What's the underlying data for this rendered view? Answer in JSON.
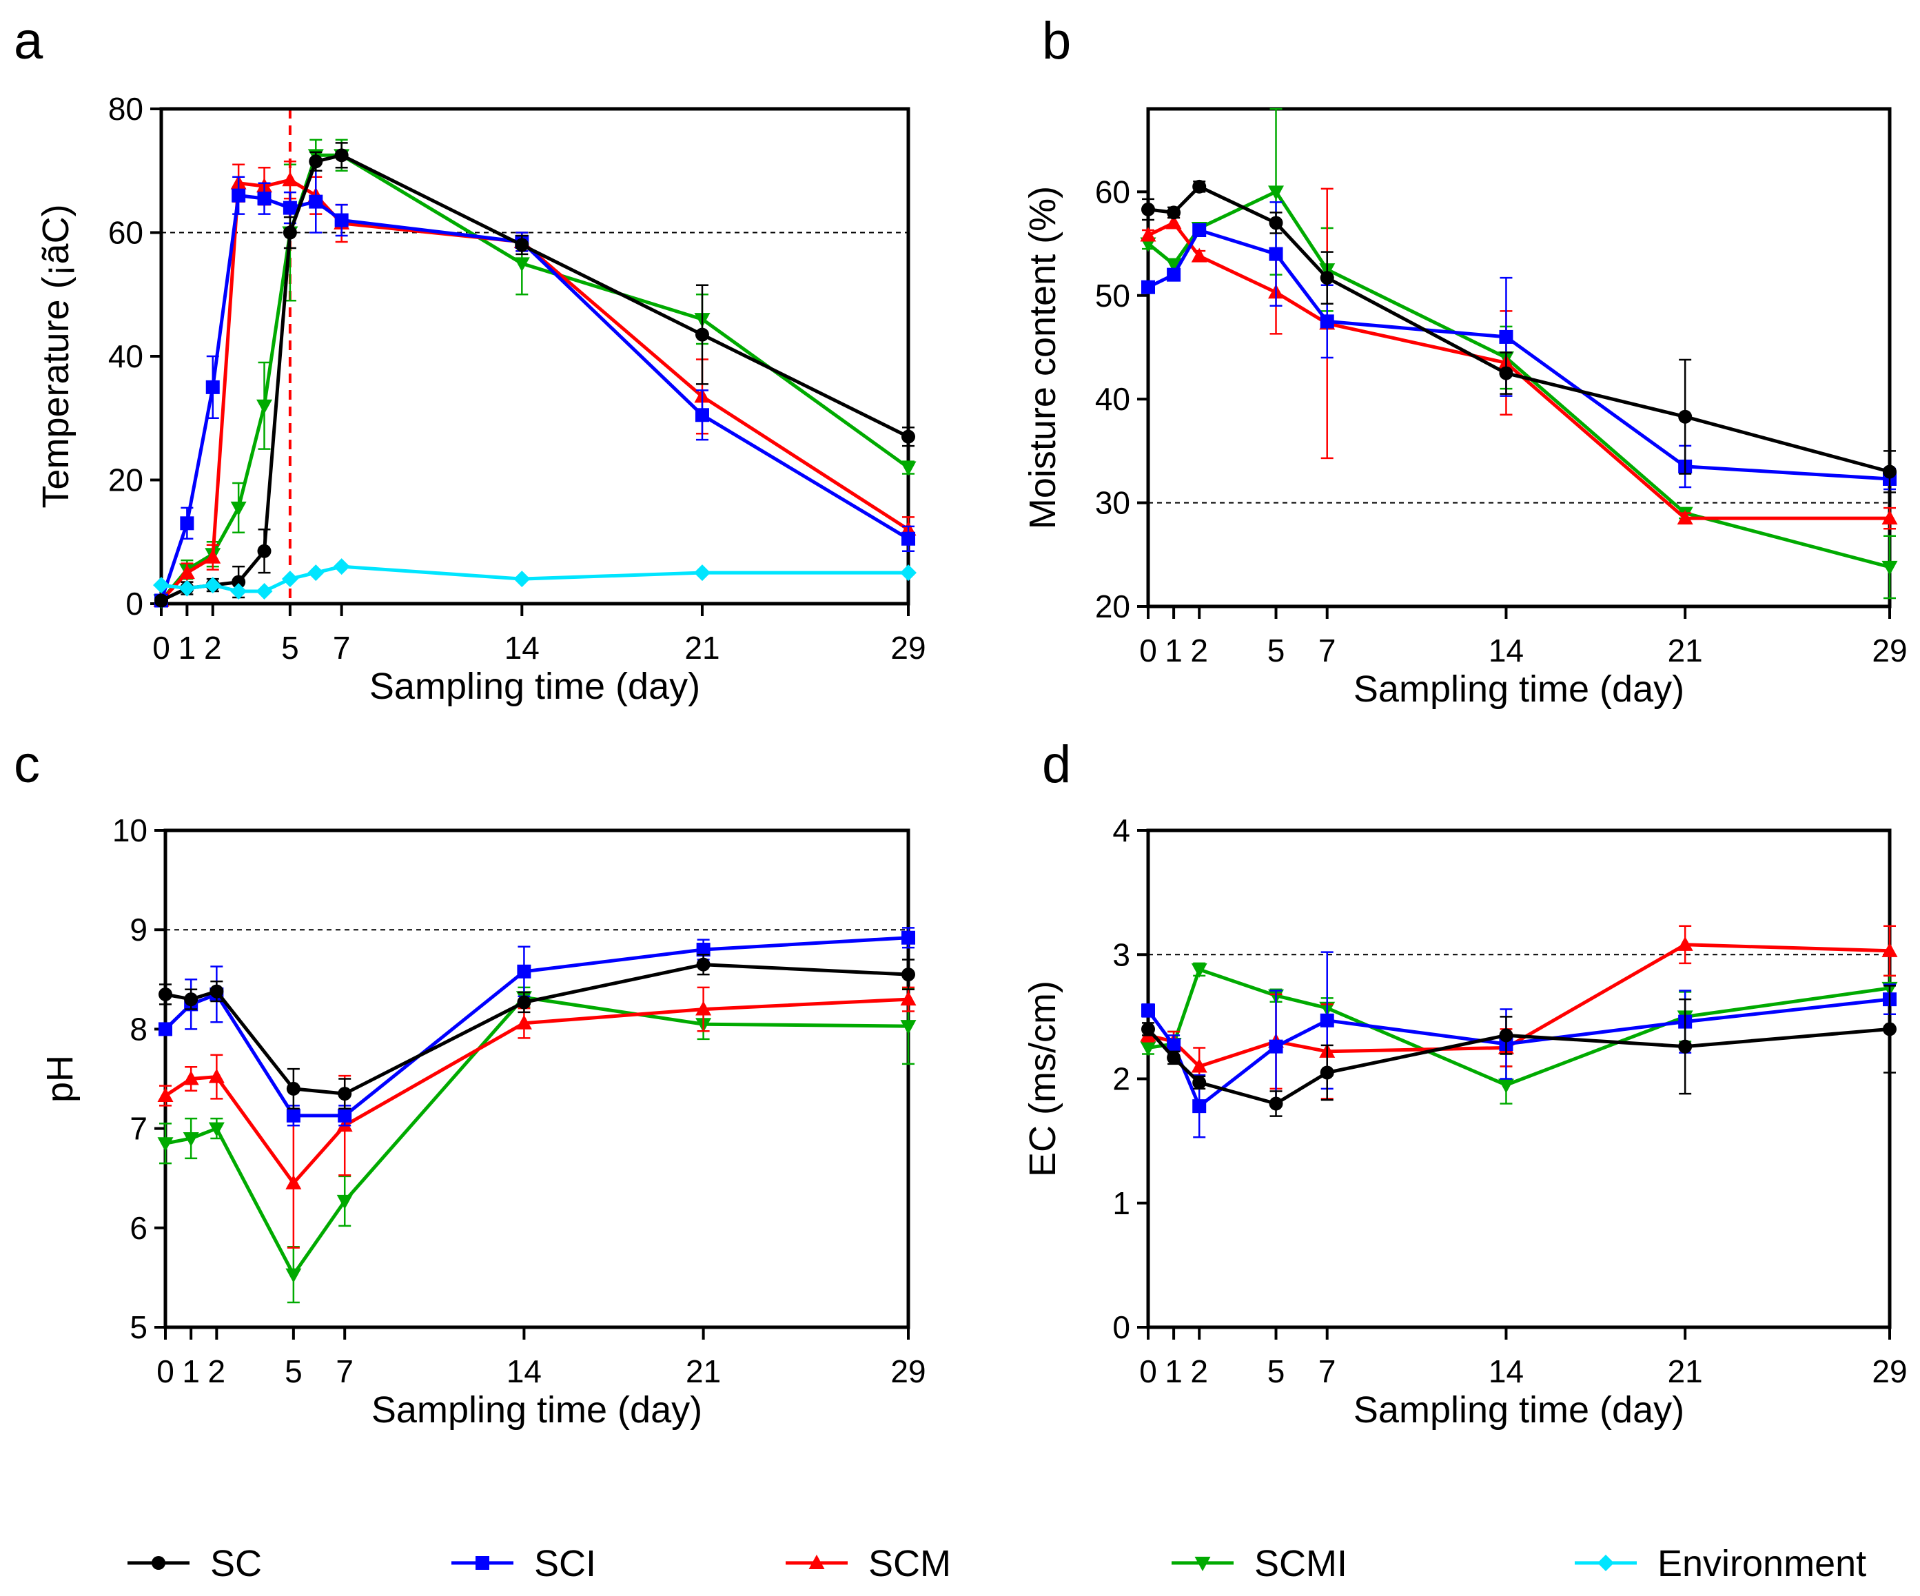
{
  "chart_data": [
    {
      "panel": "a",
      "type": "line",
      "xlabel": "Sampling time (day)",
      "ylabel": "Temperature (¡ãC)",
      "xlim": [
        0,
        29
      ],
      "ylim": [
        0,
        80
      ],
      "xticks": [
        0,
        1,
        2,
        5,
        7,
        14,
        21,
        29
      ],
      "xtick_labels": [
        "0",
        "1",
        "2",
        "5",
        "7",
        "14",
        "21",
        "29"
      ],
      "yticks": [
        0,
        20,
        40,
        60,
        80
      ],
      "reference_hline": 60,
      "reference_vline": 5,
      "series": [
        {
          "name": "SC",
          "x": [
            0,
            1,
            2,
            3,
            4,
            5,
            6,
            7,
            14,
            21,
            29
          ],
          "y": [
            0.5,
            2.5,
            3,
            3.5,
            8.5,
            60,
            71.5,
            72.5,
            58,
            43.5,
            27
          ],
          "err": [
            0.5,
            1,
            1,
            2.5,
            3.5,
            2.5,
            1.5,
            2,
            1.5,
            8,
            1.5
          ]
        },
        {
          "name": "SCI",
          "x": [
            0,
            1,
            2,
            3,
            4,
            5,
            6,
            7,
            14,
            21,
            29
          ],
          "y": [
            0.5,
            13,
            35,
            66,
            65.5,
            64,
            65,
            62,
            58.5,
            30.5,
            10.5
          ],
          "err": [
            0.5,
            2.5,
            5,
            3,
            2.5,
            2.5,
            5,
            2.5,
            1.5,
            4,
            2
          ]
        },
        {
          "name": "SCM",
          "x": [
            0,
            1,
            2,
            3,
            4,
            5,
            6,
            7,
            14,
            21,
            29
          ],
          "y": [
            0.5,
            5,
            7.5,
            68,
            67.5,
            68.5,
            66,
            61.5,
            58.5,
            33.5,
            12
          ],
          "err": [
            0.5,
            1.5,
            2,
            3,
            3,
            3,
            3,
            3,
            1.5,
            6,
            2
          ]
        },
        {
          "name": "SCMI",
          "x": [
            0,
            1,
            2,
            3,
            4,
            5,
            6,
            7,
            14,
            21,
            29
          ],
          "y": [
            0.5,
            5.5,
            8,
            15.5,
            32,
            60,
            72.5,
            72.5,
            55,
            46,
            22
          ],
          "err": [
            0.5,
            1.5,
            2,
            4,
            7,
            11,
            2.5,
            2.5,
            5,
            4,
            1
          ]
        },
        {
          "name": "Environment",
          "x": [
            0,
            1,
            2,
            3,
            4,
            5,
            6,
            7,
            14,
            21,
            29
          ],
          "y": [
            3,
            2.5,
            3,
            2,
            2,
            4,
            5,
            6,
            4,
            5,
            5
          ],
          "err": [
            0,
            0,
            0,
            0,
            0,
            0,
            0,
            0,
            0,
            0,
            0
          ]
        }
      ]
    },
    {
      "panel": "b",
      "type": "line",
      "xlabel": "Sampling time (day)",
      "ylabel": "Moisture content (%)",
      "xlim": [
        0,
        29
      ],
      "ylim": [
        20,
        68
      ],
      "xticks": [
        0,
        1,
        2,
        5,
        7,
        14,
        21,
        29
      ],
      "xtick_labels": [
        "0",
        "1",
        "2",
        "5",
        "7",
        "14",
        "21",
        "29"
      ],
      "yticks": [
        20,
        30,
        40,
        50,
        60
      ],
      "reference_hline": 30,
      "series": [
        {
          "name": "SC",
          "x": [
            0,
            1,
            2,
            5,
            7,
            14,
            21,
            29
          ],
          "y": [
            58.3,
            58,
            60.5,
            57,
            51.7,
            42.5,
            38.3,
            33
          ],
          "err": [
            1,
            0.5,
            0.5,
            1,
            2.5,
            2,
            5.5,
            2
          ]
        },
        {
          "name": "SCI",
          "x": [
            0,
            1,
            2,
            5,
            7,
            14,
            21,
            29
          ],
          "y": [
            50.8,
            52,
            56.3,
            54,
            47.5,
            46,
            33.5,
            32.3
          ],
          "err": [
            0.5,
            0.5,
            0.5,
            5,
            3.5,
            5.7,
            2,
            1
          ]
        },
        {
          "name": "SCM",
          "x": [
            0,
            1,
            2,
            5,
            7,
            14,
            21,
            29
          ],
          "y": [
            55.8,
            57,
            53.8,
            50.3,
            47.3,
            43.5,
            28.5,
            28.5
          ],
          "err": [
            0.5,
            0.5,
            0.5,
            4,
            13,
            5,
            0.5,
            1
          ]
        },
        {
          "name": "SCMI",
          "x": [
            0,
            1,
            2,
            5,
            7,
            14,
            21,
            29
          ],
          "y": [
            55,
            53,
            56.5,
            60,
            52.5,
            44,
            29,
            23.8
          ],
          "err": [
            0.5,
            0.5,
            0.5,
            8,
            4,
            3,
            0.5,
            3
          ]
        }
      ]
    },
    {
      "panel": "c",
      "type": "line",
      "xlabel": "Sampling time (day)",
      "ylabel": "pH",
      "xlim": [
        0,
        29
      ],
      "ylim": [
        5,
        10
      ],
      "xticks": [
        0,
        1,
        2,
        5,
        7,
        14,
        21,
        29
      ],
      "xtick_labels": [
        "0",
        "1",
        "2",
        "5",
        "7",
        "14",
        "21",
        "29"
      ],
      "yticks": [
        5,
        6,
        7,
        8,
        9,
        10
      ],
      "reference_hline": 9,
      "series": [
        {
          "name": "SC",
          "x": [
            0,
            1,
            2,
            5,
            7,
            14,
            21,
            29
          ],
          "y": [
            8.35,
            8.3,
            8.38,
            7.4,
            7.35,
            8.27,
            8.65,
            8.55
          ],
          "err": [
            0.1,
            0.1,
            0.1,
            0.2,
            0.15,
            0.1,
            0.1,
            0.15
          ]
        },
        {
          "name": "SCI",
          "x": [
            0,
            1,
            2,
            5,
            7,
            14,
            21,
            29
          ],
          "y": [
            8.0,
            8.25,
            8.35,
            7.13,
            7.13,
            8.58,
            8.8,
            8.92
          ],
          "err": [
            0.05,
            0.25,
            0.28,
            0.1,
            0.1,
            0.25,
            0.1,
            0.1
          ]
        },
        {
          "name": "SCM",
          "x": [
            0,
            1,
            2,
            5,
            7,
            14,
            21,
            29
          ],
          "y": [
            7.33,
            7.5,
            7.52,
            6.45,
            7.03,
            8.06,
            8.2,
            8.3
          ],
          "err": [
            0.1,
            0.12,
            0.22,
            0.65,
            0.5,
            0.15,
            0.22,
            0.12
          ]
        },
        {
          "name": "SCMI",
          "x": [
            0,
            1,
            2,
            5,
            7,
            14,
            21,
            29
          ],
          "y": [
            6.85,
            6.9,
            7.0,
            5.53,
            6.27,
            8.32,
            8.05,
            8.03
          ],
          "err": [
            0.2,
            0.2,
            0.1,
            0.28,
            0.25,
            0.1,
            0.15,
            0.38
          ]
        }
      ]
    },
    {
      "panel": "d",
      "type": "line",
      "xlabel": "Sampling time (day)",
      "ylabel": "EC (ms/cm)",
      "xlim": [
        0,
        29
      ],
      "ylim": [
        0,
        4
      ],
      "xticks": [
        0,
        1,
        2,
        5,
        7,
        14,
        21,
        29
      ],
      "xtick_labels": [
        "0",
        "1",
        "2",
        "5",
        "7",
        "14",
        "21",
        "29"
      ],
      "yticks": [
        0,
        1,
        2,
        3,
        4
      ],
      "reference_hline": 3,
      "series": [
        {
          "name": "SC",
          "x": [
            0,
            1,
            2,
            5,
            7,
            14,
            21,
            29
          ],
          "y": [
            2.4,
            2.17,
            1.97,
            1.8,
            2.05,
            2.35,
            2.26,
            2.4
          ],
          "err": [
            0.05,
            0.05,
            0.05,
            0.1,
            0.22,
            0.15,
            0.38,
            0.35
          ]
        },
        {
          "name": "SCI",
          "x": [
            0,
            1,
            2,
            5,
            7,
            14,
            21,
            29
          ],
          "y": [
            2.55,
            2.27,
            1.78,
            2.26,
            2.47,
            2.28,
            2.46,
            2.64
          ],
          "err": [
            0.05,
            0.08,
            0.25,
            0.45,
            0.55,
            0.28,
            0.25,
            0.12
          ]
        },
        {
          "name": "SCM",
          "x": [
            0,
            1,
            2,
            5,
            7,
            14,
            21,
            29
          ],
          "y": [
            2.35,
            2.3,
            2.1,
            2.3,
            2.22,
            2.25,
            3.08,
            3.03
          ],
          "err": [
            0.05,
            0.08,
            0.15,
            0.38,
            0.38,
            0.15,
            0.15,
            0.2
          ]
        },
        {
          "name": "SCMI",
          "x": [
            0,
            1,
            2,
            5,
            7,
            14,
            21,
            29
          ],
          "y": [
            2.25,
            2.28,
            2.88,
            2.67,
            2.57,
            1.95,
            2.5,
            2.73
          ],
          "err": [
            0.05,
            0.1,
            0.05,
            0.05,
            0.08,
            0.15,
            0.2,
            0.1
          ]
        }
      ]
    }
  ],
  "legend": [
    {
      "name": "SC",
      "color": "#000000",
      "marker": "circle"
    },
    {
      "name": "SCI",
      "color": "#0000ff",
      "marker": "square"
    },
    {
      "name": "SCM",
      "color": "#ff0000",
      "marker": "triangle-up"
    },
    {
      "name": "SCMI",
      "color": "#00aa00",
      "marker": "triangle-down"
    },
    {
      "name": "Environment",
      "color": "#00e5ff",
      "marker": "diamond"
    }
  ]
}
